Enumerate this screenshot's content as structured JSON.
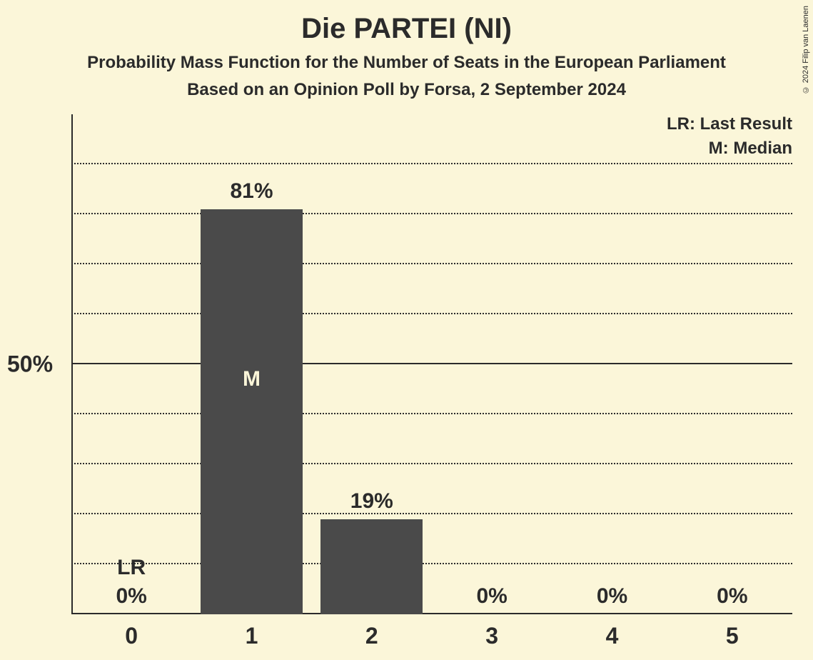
{
  "title": {
    "main": "Die PARTEI (NI)",
    "sub1": "Probability Mass Function for the Number of Seats in the European Parliament",
    "sub2": "Based on an Opinion Poll by Forsa, 2 September 2024"
  },
  "copyright": "© 2024 Filip van Laenen",
  "chart": {
    "type": "bar",
    "background_color": "#fbf6d9",
    "bar_color": "#4a4a4a",
    "text_color": "#2b2b2b",
    "inbar_text_color": "#fbf6d9",
    "grid_color": "#2b2b2b",
    "title_fontsize": 40,
    "subtitle_fontsize": 24,
    "label_fontsize": 30,
    "tick_fontsize": 32,
    "legend_fontsize": 24,
    "ylim": [
      0,
      100
    ],
    "y_major_tick": 50,
    "y_minor_step": 10,
    "y_major_label": "50%",
    "bar_width_ratio": 0.85,
    "categories": [
      "0",
      "1",
      "2",
      "3",
      "4",
      "5"
    ],
    "values": [
      0,
      81,
      19,
      0,
      0,
      0
    ],
    "value_labels": [
      "0%",
      "81%",
      "19%",
      "0%",
      "0%",
      "0%"
    ],
    "annotations_above": [
      "LR",
      "",
      "",
      "",
      "",
      ""
    ],
    "annotations_in_bar": [
      "",
      "M",
      "",
      "",
      "",
      ""
    ],
    "legend": {
      "lr": "LR: Last Result",
      "m": "M: Median"
    }
  }
}
